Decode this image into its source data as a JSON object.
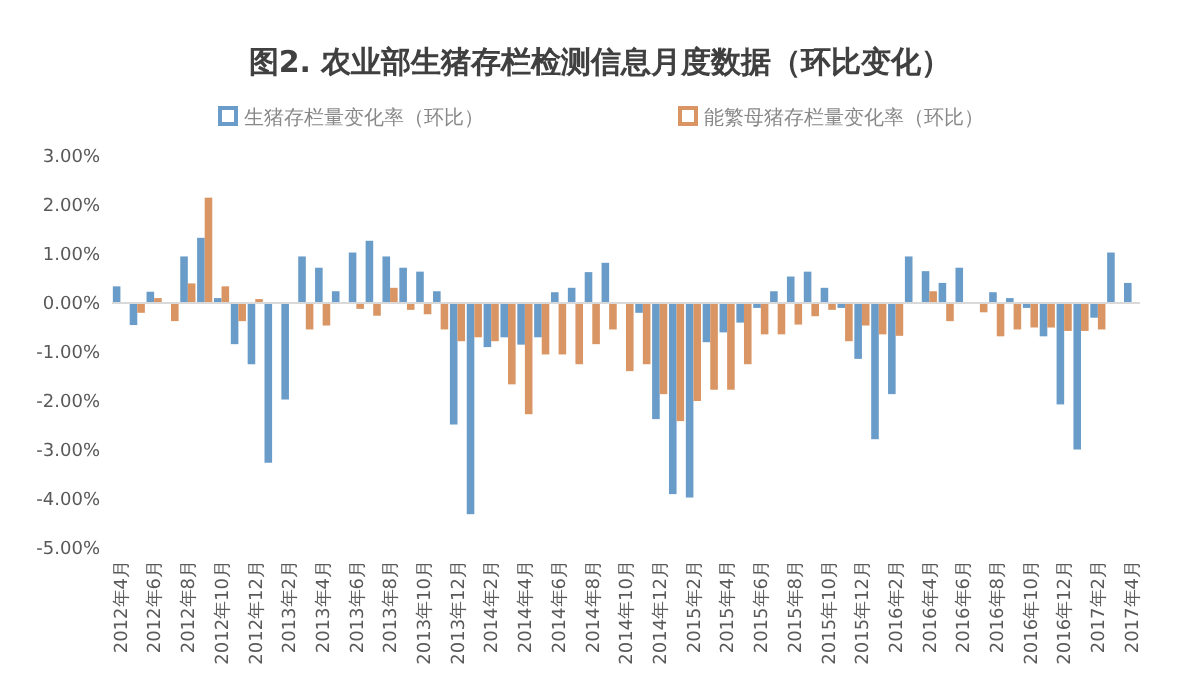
{
  "chart_data": {
    "type": "bar",
    "title": "图2. 农业部生猪存栏检测信息月度数据（环比变化）",
    "categories": [
      "2012年4月",
      null,
      "2012年6月",
      null,
      "2012年8月",
      null,
      "2012年10月",
      null,
      "2012年12月",
      null,
      "2013年2月",
      null,
      "2013年4月",
      null,
      "2013年6月",
      null,
      "2013年8月",
      null,
      "2013年10月",
      null,
      "2013年12月",
      null,
      "2014年2月",
      null,
      "2014年4月",
      null,
      "2014年6月",
      null,
      "2014年8月",
      null,
      "2014年10月",
      null,
      "2014年12月",
      null,
      "2015年2月",
      null,
      "2015年4月",
      null,
      "2015年6月",
      null,
      "2015年8月",
      null,
      "2015年10月",
      null,
      "2015年12月",
      null,
      "2016年2月",
      null,
      "2016年4月",
      null,
      "2016年6月",
      null,
      "2016年8月",
      null,
      "2016年10月",
      null,
      "2016年12月",
      null,
      "2017年2月",
      null,
      "2017年4月"
    ],
    "series": [
      {
        "name": "生猪存栏量变化率（环比）",
        "color": "#6a9cc9",
        "values": [
          0.34,
          -0.45,
          0.23,
          0,
          0.95,
          1.33,
          0.1,
          -0.84,
          -1.25,
          -3.26,
          -1.97,
          0.95,
          0.72,
          0.24,
          1.03,
          1.27,
          0.95,
          0.72,
          0.64,
          0.24,
          -2.48,
          -4.31,
          -0.9,
          -0.7,
          -0.85,
          -0.7,
          0.22,
          0.31,
          0.63,
          0.82,
          null,
          -0.2,
          -2.37,
          -3.9,
          -3.97,
          -0.8,
          -0.6,
          -0.4,
          -0.1,
          0.24,
          0.54,
          0.64,
          0.31,
          -0.1,
          -1.14,
          -2.78,
          -1.86,
          0.95,
          0.65,
          0.41,
          0.72,
          null,
          0.22,
          0.1,
          -0.1,
          -0.68,
          -2.07,
          -2.99,
          -0.3,
          1.03,
          0.41
        ]
      },
      {
        "name": "能繁母猪存栏量变化率（环比）",
        "color": "#d99664",
        "values": [
          0,
          -0.2,
          0.1,
          -0.37,
          0.4,
          2.15,
          0.34,
          -0.37,
          0.08,
          null,
          null,
          -0.54,
          -0.46,
          0,
          -0.12,
          -0.26,
          0.31,
          -0.14,
          -0.23,
          -0.54,
          -0.78,
          -0.7,
          -0.78,
          -1.66,
          -2.27,
          -1.05,
          -1.05,
          -1.25,
          -0.84,
          -0.54,
          -1.39,
          -1.25,
          -1.86,
          -2.41,
          -2.0,
          -1.77,
          -1.77,
          -1.25,
          -0.64,
          -0.64,
          -0.44,
          -0.27,
          -0.14,
          -0.78,
          -0.46,
          -0.64,
          -0.67,
          0,
          0.24,
          -0.37,
          0,
          -0.19,
          -0.68,
          -0.54,
          -0.5,
          -0.5,
          -0.57,
          -0.57,
          -0.54,
          0,
          0
        ]
      }
    ],
    "ylim": [
      -5,
      3
    ],
    "yticks": [
      {
        "value": -5,
        "label": "-5.00%"
      },
      {
        "value": -4,
        "label": "-4.00%"
      },
      {
        "value": -3,
        "label": "-3.00%"
      },
      {
        "value": -2,
        "label": "-2.00%"
      },
      {
        "value": -1,
        "label": "-1.00%"
      },
      {
        "value": 0,
        "label": "0.00%"
      },
      {
        "value": 1,
        "label": "1.00%"
      },
      {
        "value": 2,
        "label": "2.00%"
      },
      {
        "value": 3,
        "label": "3.00%"
      }
    ],
    "legend": "top"
  }
}
